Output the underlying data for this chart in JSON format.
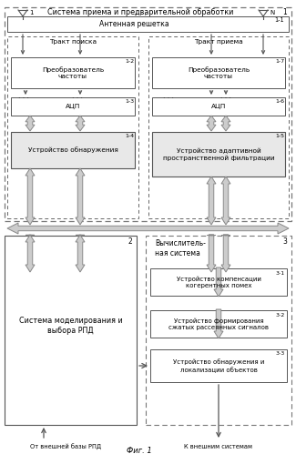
{
  "title_top": "Система приема и предварительной обработки",
  "label1": "1",
  "label1_1": "1-1",
  "ant_label": "Антенная решетка",
  "ant1_label": "1",
  "antN_label": "N",
  "tract_search": "Тракт поиска",
  "tract_recv": "Тракт приема",
  "freq_conv1": "Преобразователь\nчастоты",
  "freq_conv2": "Преобразователь\nчастоты",
  "label1_2": "1-2",
  "label1_7": "1-7",
  "adc1": "АЦП",
  "adc2": "АЦП",
  "label1_3": "1-3",
  "label1_6": "1-6",
  "detect": "Устройство обнаружения",
  "label1_4": "1-4",
  "adapt_filt": "Устройство адаптивной\nпространственной фильтрации",
  "label1_5": "1-5",
  "label2": "2",
  "model_sys": "Система моделирования и\nвыбора РПД",
  "label3": "3",
  "comp_sys_label": "Вычислитель-\nная система",
  "comp1": "Устройство компенсации\nкогерентных помех",
  "label3_1": "3-1",
  "comp2": "Устройство формирования\nсжатых рассеянных сигналов",
  "label3_2": "3-2",
  "comp3": "Устройство обнаружения и\nлокализации объектов",
  "label3_3": "3-3",
  "bottom_left": "От внешней базы РПД",
  "bottom_right": "К внешним системам",
  "fig_label": "Фиг. 1",
  "dots": ". . ."
}
